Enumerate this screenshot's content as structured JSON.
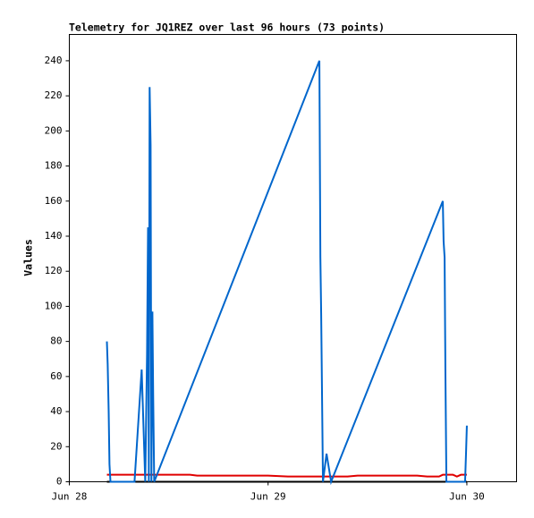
{
  "chart_data": {
    "type": "line",
    "title": "Telemetry for JQ1REZ over last 96 hours (73 points)",
    "ylabel": "Values",
    "xlim": [
      0,
      2.25
    ],
    "xticks": [
      {
        "value": 0,
        "label": "Jun 28"
      },
      {
        "value": 1,
        "label": "Jun 29"
      },
      {
        "value": 2,
        "label": "Jun 30"
      }
    ],
    "ylim": [
      0,
      255
    ],
    "yticks": [
      0,
      20,
      40,
      60,
      80,
      100,
      120,
      140,
      160,
      180,
      200,
      220,
      240
    ],
    "series": [
      {
        "color": "#000000",
        "x": [
          0.189,
          2.0
        ],
        "values": [
          0,
          0
        ]
      },
      {
        "color": "#e00000",
        "x": [
          0.189,
          0.607,
          0.643,
          1.0,
          1.1,
          1.4,
          1.45,
          1.75,
          1.8,
          1.86,
          1.879,
          1.93,
          1.95,
          1.97,
          2.0
        ],
        "values": [
          4,
          4,
          3.5,
          3.5,
          3,
          3,
          3.5,
          3.5,
          3,
          3,
          4,
          4,
          3,
          4,
          4
        ]
      },
      {
        "color": "#0066cc",
        "x": [
          0.189,
          0.193,
          0.198,
          0.202,
          0.207,
          0.328,
          0.364,
          0.382,
          0.391,
          0.396,
          0.4,
          0.404,
          0.409,
          0.413,
          0.418,
          0.422,
          0.427,
          1.258,
          1.263,
          1.267,
          1.276,
          1.294,
          1.317,
          1.879,
          1.883,
          1.888,
          1.892,
          1.897,
          1.991,
          1.996,
          2.0
        ],
        "values": [
          80,
          67,
          40,
          10,
          0,
          0,
          64,
          0,
          73,
          145,
          0,
          225,
          192,
          0,
          97,
          48,
          0,
          240,
          128,
          96,
          0,
          16,
          0,
          160,
          137,
          128,
          64,
          0,
          0,
          17,
          32
        ]
      }
    ]
  }
}
